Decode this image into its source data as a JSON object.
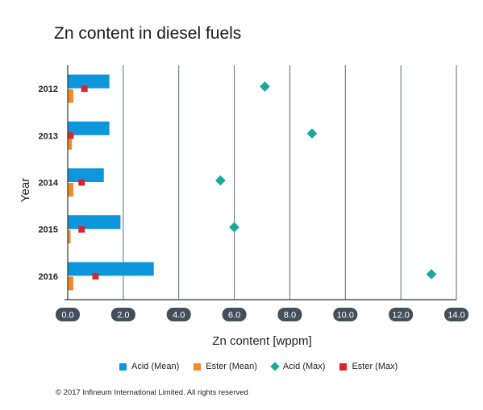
{
  "colors": {
    "acid_mean": "#0d96db",
    "ester_mean": "#f28a27",
    "acid_max": "#1aa89a",
    "ester_max": "#d9262b",
    "gridline": "#5b6b7a",
    "tick_badge": "#454f5c",
    "tick_text": "#ffffff"
  },
  "copyright": "© 2017 Infineum International Limited. All rights reserved",
  "chart_data": {
    "type": "bar",
    "orientation": "horizontal",
    "title": "Zn content in diesel fuels",
    "xlabel": "Zn content [wppm]",
    "ylabel": "Year",
    "categories": [
      "2012",
      "2013",
      "2014",
      "2015",
      "2016"
    ],
    "xlim": [
      0,
      14
    ],
    "xticks": [
      "0.0",
      "2.0",
      "4.0",
      "6.0",
      "8.0",
      "10.0",
      "12.0",
      "14.0"
    ],
    "grid": "vertical",
    "legend_position": "bottom",
    "series": [
      {
        "name": "Acid (Mean)",
        "kind": "bar",
        "values": [
          1.5,
          1.5,
          1.3,
          1.9,
          3.1
        ]
      },
      {
        "name": "Ester (Mean)",
        "kind": "bar",
        "values": [
          0.2,
          0.15,
          0.2,
          0.1,
          0.2
        ]
      },
      {
        "name": "Acid (Max)",
        "kind": "diamond",
        "values": [
          7.1,
          8.8,
          5.5,
          6.0,
          13.1
        ]
      },
      {
        "name": "Ester (Max)",
        "kind": "square",
        "values": [
          0.6,
          0.1,
          0.5,
          0.5,
          1.0
        ]
      }
    ]
  }
}
